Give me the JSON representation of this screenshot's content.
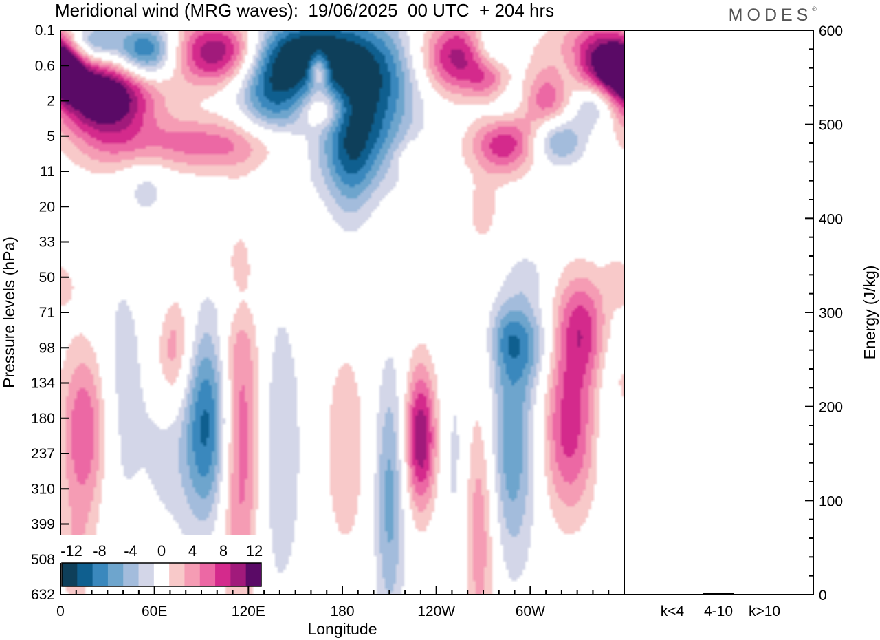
{
  "header": {
    "title": "Meridional wind (MRG waves):  19/06/2025  00 UTC  + 204 hrs",
    "brand": "MODES",
    "brand_mark": "®"
  },
  "colors": {
    "neg": [
      "#0e3f5a",
      "#0f5f8f",
      "#3a88bd",
      "#6ea5cd",
      "#a3bcdc",
      "#d3d6e8"
    ],
    "pos": [
      "#f8c9c9",
      "#f59cb4",
      "#ec68a4",
      "#d42a8c",
      "#a11a7b",
      "#5a0a66"
    ],
    "zero": "#ffffff"
  },
  "chart_data": [
    {
      "type": "heatmap",
      "title": "Meridional wind (MRG waves):  19/06/2025  00 UTC  + 204 hrs",
      "xlabel": "Longitude",
      "ylabel": "Pressure levels (hPa)",
      "x_ticks": [
        "0",
        "60E",
        "120E",
        "180",
        "120W",
        "60W"
      ],
      "x_tick_degrees": [
        0,
        60,
        120,
        180,
        240,
        300
      ],
      "xlim": [
        0,
        360
      ],
      "y_ticks": [
        "0.1",
        "0.6",
        "2",
        "5",
        "11",
        "20",
        "33",
        "50",
        "71",
        "98",
        "134",
        "180",
        "237",
        "310",
        "399",
        "508",
        "632"
      ],
      "colorbar": {
        "labels": [
          "-12",
          "-8",
          "-4",
          "0",
          "4",
          "8",
          "12"
        ],
        "levels": [
          -12,
          -10,
          -8,
          -6,
          -4,
          -2,
          0,
          2,
          4,
          6,
          8,
          10,
          12
        ]
      },
      "features": [
        {
          "lon": 20,
          "lev": 0.2,
          "v": -8,
          "sx": 12,
          "sy": 0.22
        },
        {
          "lon": 55,
          "lev": 0.3,
          "v": -12,
          "sx": 14,
          "sy": 0.4
        },
        {
          "lon": 100,
          "lev": 0.3,
          "v": 12,
          "sx": 22,
          "sy": 0.6
        },
        {
          "lon": 160,
          "lev": 0.3,
          "v": -10,
          "sx": 20,
          "sy": 0.6
        },
        {
          "lon": 195,
          "lev": 0.8,
          "v": -12,
          "sx": 25,
          "sy": 1.7
        },
        {
          "lon": 135,
          "lev": 1.1,
          "v": -11,
          "sx": 16,
          "sy": 1.3
        },
        {
          "lon": 165,
          "lev": 0.7,
          "v": 11,
          "sx": 5,
          "sy": 0.35
        },
        {
          "lon": 255,
          "lev": 0.4,
          "v": 12,
          "sx": 20,
          "sy": 0.8
        },
        {
          "lon": 275,
          "lev": 1.0,
          "v": 9,
          "sx": 10,
          "sy": 0.6
        },
        {
          "lon": 275,
          "lev": 0.3,
          "v": -8,
          "sx": 10,
          "sy": 0.45
        },
        {
          "lon": 342,
          "lev": 0.4,
          "v": 11,
          "sx": 20,
          "sy": 0.7
        },
        {
          "lon": 325,
          "lev": 0.7,
          "v": -4,
          "sx": 8,
          "sy": 0.5
        },
        {
          "lon": 0,
          "lev": 0.6,
          "v": 12,
          "sx": 10,
          "sy": 0.4
        },
        {
          "lon": 25,
          "lev": 1.5,
          "v": 12,
          "sx": 25,
          "sy": 1.0
        },
        {
          "lon": 30,
          "lev": 3.0,
          "v": 6,
          "sx": 18,
          "sy": 2.3
        },
        {
          "lon": 95,
          "lev": 6.0,
          "v": 7,
          "sx": 45,
          "sy": 2.6
        },
        {
          "lon": 168,
          "lev": 2.5,
          "v": 8,
          "sx": 10,
          "sy": 1.0
        },
        {
          "lon": 188,
          "lev": 6.0,
          "v": -9,
          "sx": 20,
          "sy": 4.0
        },
        {
          "lon": 185,
          "lev": 13.0,
          "v": -4,
          "sx": 10,
          "sy": 9.0
        },
        {
          "lon": 280,
          "lev": 2.0,
          "v": -7,
          "sx": 14,
          "sy": 1.3
        },
        {
          "lon": 310,
          "lev": 2.0,
          "v": 7,
          "sx": 12,
          "sy": 1.1
        },
        {
          "lon": 340,
          "lev": 2.2,
          "v": -7,
          "sx": 10,
          "sy": 1.0
        },
        {
          "lon": 283,
          "lev": 5.5,
          "v": 11,
          "sx": 15,
          "sy": 2.8
        },
        {
          "lon": 318,
          "lev": 5.5,
          "v": -7,
          "sx": 12,
          "sy": 2.2
        },
        {
          "lon": 230,
          "lev": 8.0,
          "v": 3,
          "sx": 12,
          "sy": 2.0
        },
        {
          "lon": 270,
          "lev": 22.0,
          "v": 3,
          "sx": 8,
          "sy": 8.0
        },
        {
          "lon": 55,
          "lev": 14.0,
          "v": -3,
          "sx": 10,
          "sy": 5.0
        },
        {
          "lon": 3,
          "lev": 55.0,
          "v": 2,
          "sx": 6,
          "sy": 8.0
        },
        {
          "lon": 15,
          "lev": 200.0,
          "v": 8,
          "sx": 11,
          "sy": 90.0
        },
        {
          "lon": 10,
          "lev": 500.0,
          "v": 3,
          "sx": 9,
          "sy": 150.0
        },
        {
          "lon": 38,
          "lev": 150.0,
          "v": -3,
          "sx": 10,
          "sy": 110.0
        },
        {
          "lon": 67,
          "lev": 180.0,
          "v": -3,
          "sx": 12,
          "sy": 110.0
        },
        {
          "lon": 67,
          "lev": 60.0,
          "v": -2,
          "sx": 10,
          "sy": 25.0
        },
        {
          "lon": 72,
          "lev": 98.0,
          "v": 8,
          "sx": 9,
          "sy": 40.0
        },
        {
          "lon": 94,
          "lev": 190.0,
          "v": -11,
          "sx": 11,
          "sy": 100.0
        },
        {
          "lon": 115,
          "lev": 210.0,
          "v": 9,
          "sx": 10,
          "sy": 160.0
        },
        {
          "lon": 138,
          "lev": 230.0,
          "v": -4,
          "sx": 13,
          "sy": 170.0
        },
        {
          "lon": 112,
          "lev": 65.0,
          "v": -2,
          "sx": 10,
          "sy": 12.0
        },
        {
          "lon": 182,
          "lev": 230.0,
          "v": 3,
          "sx": 13,
          "sy": 150.0
        },
        {
          "lon": 210,
          "lev": 330.0,
          "v": -7,
          "sx": 7,
          "sy": 200.0
        },
        {
          "lon": 230,
          "lev": 210.0,
          "v": 12,
          "sx": 7,
          "sy": 80.0
        },
        {
          "lon": 253,
          "lev": 260.0,
          "v": -3,
          "sx": 6,
          "sy": 150.0
        },
        {
          "lon": 268,
          "lev": 390.0,
          "v": 6,
          "sx": 8,
          "sy": 230.0
        },
        {
          "lon": 288,
          "lev": 210.0,
          "v": -8,
          "sx": 11,
          "sy": 130.0
        },
        {
          "lon": 300,
          "lev": 95.0,
          "v": -5,
          "sx": 10,
          "sy": 25.0
        },
        {
          "lon": 285,
          "lev": 90.0,
          "v": -4,
          "sx": 8,
          "sy": 18.0
        },
        {
          "lon": 258,
          "lev": 100.0,
          "v": 2,
          "sx": 7,
          "sy": 20.0
        },
        {
          "lon": 325,
          "lev": 195.0,
          "v": 9,
          "sx": 12,
          "sy": 90.0
        },
        {
          "lon": 333,
          "lev": 80.0,
          "v": 8,
          "sx": 12,
          "sy": 28.0
        },
        {
          "lon": 352,
          "lev": 175.0,
          "v": -3,
          "sx": 6,
          "sy": 80.0
        },
        {
          "lon": 355,
          "lev": 135.0,
          "v": 2,
          "sx": 4,
          "sy": 15.0
        },
        {
          "lon": 355,
          "lev": 50.0,
          "v": 2,
          "sx": 6,
          "sy": 12.0
        },
        {
          "lon": 300,
          "lev": 50.0,
          "v": -2,
          "sx": 8,
          "sy": 10.0
        }
      ]
    },
    {
      "type": "bar",
      "ylabel": "Energy (J/kg)",
      "categories": [
        "k<4",
        "4-10",
        "k>10"
      ],
      "values": [
        0,
        2,
        0
      ],
      "ylim": [
        0,
        600
      ],
      "y_ticks": [
        "0",
        "100",
        "200",
        "300",
        "400",
        "500",
        "600"
      ],
      "y_tick_values": [
        0,
        100,
        200,
        300,
        400,
        500,
        600
      ]
    }
  ]
}
